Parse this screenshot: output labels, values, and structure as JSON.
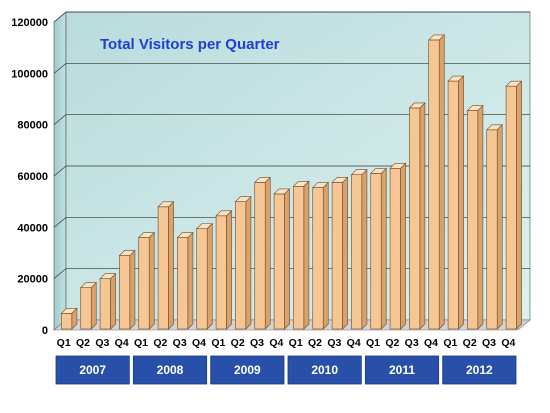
{
  "chart_data": {
    "type": "bar",
    "title": "Total Visitors per Quarter",
    "xlabel": "",
    "ylabel": "",
    "categories": [
      "Q1",
      "Q2",
      "Q3",
      "Q4",
      "Q1",
      "Q2",
      "Q3",
      "Q4",
      "Q1",
      "Q2",
      "Q3",
      "Q4",
      "Q1",
      "Q2",
      "Q3",
      "Q4",
      "Q1",
      "Q2",
      "Q3",
      "Q4",
      "Q1",
      "Q2",
      "Q3",
      "Q4"
    ],
    "years": [
      "2007",
      "2008",
      "2009",
      "2010",
      "2011",
      "2012"
    ],
    "values": [
      6500,
      16500,
      20000,
      29000,
      36000,
      48000,
      36000,
      39500,
      44500,
      50000,
      57500,
      53000,
      56000,
      55500,
      57500,
      60500,
      61000,
      63000,
      86500,
      113000,
      97000,
      85500,
      78000,
      95000
    ],
    "yticks": [
      "0",
      "20000",
      "40000",
      "60000",
      "80000",
      "100000",
      "120000"
    ],
    "ylim": [
      0,
      120000
    ],
    "grid": true,
    "colors": {
      "bar_front": "#f6c794",
      "bar_top": "#fbe2c0",
      "bar_side": "#d9a26a",
      "wall": "#c7e6e6",
      "floor": "#d4d4d4",
      "title": "#1f3fd0",
      "year_box": "#2850a8"
    }
  }
}
